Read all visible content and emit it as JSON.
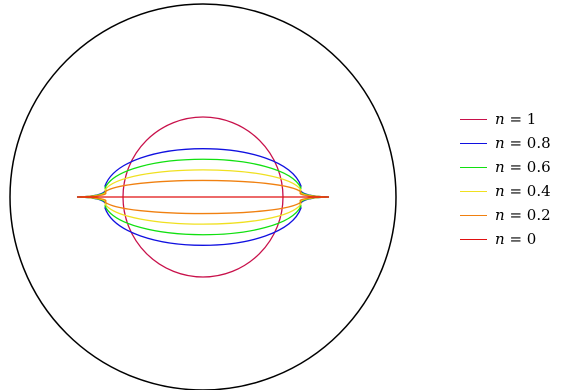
{
  "diagram": {
    "curves": [
      {
        "n": 1,
        "label_var": "n",
        "label_rest": " = 1",
        "color": "#c8104a"
      },
      {
        "n": 0.8,
        "label_var": "n",
        "label_rest": " = 0.8",
        "color": "#1010e0"
      },
      {
        "n": 0.6,
        "label_var": "n",
        "label_rest": " = 0.6",
        "color": "#10e010"
      },
      {
        "n": 0.4,
        "label_var": "n",
        "label_rest": " = 0.4",
        "color": "#f0e020"
      },
      {
        "n": 0.2,
        "label_var": "n",
        "label_rest": " = 0.2",
        "color": "#f08010"
      },
      {
        "n": 0,
        "label_var": "n",
        "label_rest": " = 0",
        "color": "#e01010"
      }
    ],
    "outer_circle_color": "#000000"
  }
}
